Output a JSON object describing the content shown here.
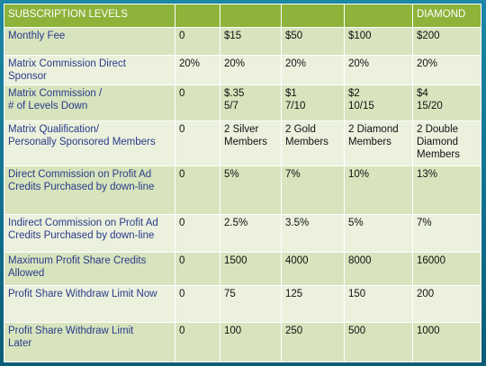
{
  "header": {
    "title": "SUBSCRIPTION LEVELS",
    "levels": [
      "",
      "",
      "",
      "",
      "DIAMOND"
    ]
  },
  "rows": [
    {
      "label": [
        "Monthly Fee"
      ],
      "values": [
        [
          "0"
        ],
        [
          "$15"
        ],
        [
          "$50"
        ],
        [
          "$100"
        ],
        [
          "$200"
        ]
      ]
    },
    {
      "label": [
        "Matrix Commission Direct",
        "Sponsor"
      ],
      "values": [
        [
          "20%"
        ],
        [
          "20%"
        ],
        [
          "20%"
        ],
        [
          "20%"
        ],
        [
          "20%"
        ]
      ]
    },
    {
      "label": [
        "Matrix Commission /",
        "# of Levels Down"
      ],
      "values": [
        [
          "0"
        ],
        [
          "$.35",
          "5/7"
        ],
        [
          "$1",
          "7/10"
        ],
        [
          "$2",
          "10/15"
        ],
        [
          "$4",
          "15/20"
        ]
      ]
    },
    {
      "label": [
        "Matrix Qualification/",
        "Personally Sponsored Members"
      ],
      "values": [
        [
          "0"
        ],
        [
          "2 Silver",
          "Members"
        ],
        [
          "2 Gold",
          "Members"
        ],
        [
          "2 Diamond",
          "Members"
        ],
        [
          "2 Double",
          "Diamond",
          "Members"
        ]
      ]
    },
    {
      "label": [
        "Direct Commission on Profit Ad",
        "Credits Purchased by down-line"
      ],
      "values": [
        [
          "0"
        ],
        [
          "5%"
        ],
        [
          "7%"
        ],
        [
          "10%"
        ],
        [
          "13%"
        ]
      ]
    },
    {
      "label": [
        "Indirect Commission on Profit Ad",
        "Credits Purchased by down-line"
      ],
      "values": [
        [
          "0"
        ],
        [
          "2.5%"
        ],
        [
          "3.5%"
        ],
        [
          "5%"
        ],
        [
          "7%"
        ]
      ]
    },
    {
      "label": [
        "Maximum Profit Share Credits",
        "Allowed"
      ],
      "values": [
        [
          "0"
        ],
        [
          "1500"
        ],
        [
          "4000"
        ],
        [
          "8000"
        ],
        [
          "16000"
        ]
      ]
    },
    {
      "label": [
        "Profit Share Withdraw Limit Now"
      ],
      "values": [
        [
          "0"
        ],
        [
          "75"
        ],
        [
          "125"
        ],
        [
          "150"
        ],
        [
          "200"
        ]
      ]
    },
    {
      "label": [
        "Profit Share Withdraw Limit",
        "Later"
      ],
      "values": [
        [
          "0"
        ],
        [
          "100"
        ],
        [
          "250"
        ],
        [
          "500"
        ],
        [
          "1000"
        ]
      ]
    }
  ],
  "colors": {
    "header_bg": "#8db33a",
    "row_odd_bg": "#d7e4bd",
    "row_even_bg": "#ebf1dd",
    "label_text": "#2a3a8a",
    "background": "#0f6f8c"
  }
}
